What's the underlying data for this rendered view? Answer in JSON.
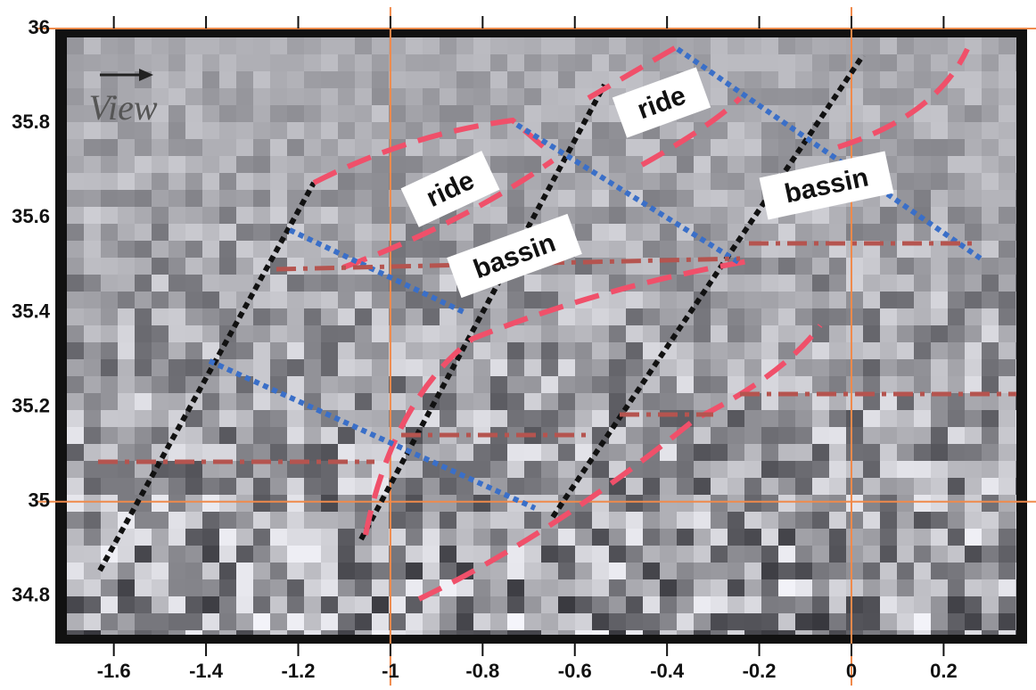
{
  "chart_data": {
    "type": "map",
    "xlim": [
      -1.727,
      0.381
    ],
    "ylim": [
      34.7,
      36.0
    ],
    "xticks": [
      -1.6,
      -1.4,
      -1.2,
      -1,
      -0.8,
      -0.6,
      -0.4,
      -0.2,
      0,
      0.2
    ],
    "yticks": [
      34.8,
      35,
      35.2,
      35.4,
      35.6,
      35.8,
      36
    ],
    "reference_lines": {
      "x": [
        -1,
        0
      ],
      "y": [
        35,
        36
      ],
      "color": "#f08a4b"
    },
    "annotations": [
      "View",
      "ride",
      "ride",
      "bassin",
      "bassin"
    ]
  }
}
